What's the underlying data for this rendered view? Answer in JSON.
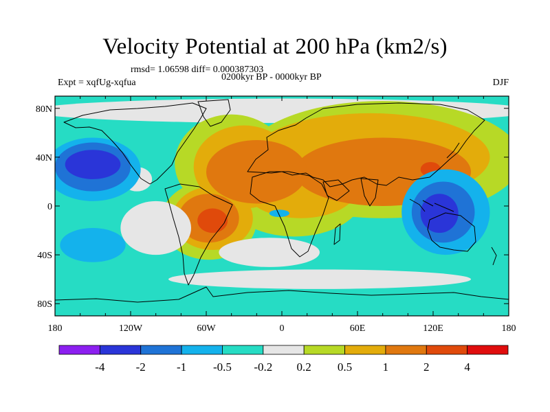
{
  "chart_data": {
    "type": "heatmap",
    "title": "Velocity Potential at 200 hPa (km2/s)",
    "stats_text": "rmsd= 1.06598 diff= 0.000387303",
    "rmsd": 1.06598,
    "diff": 0.000387303,
    "period": "0200kyr BP - 0000kyr BP",
    "experiment": "Expt = xqfUg-xqfua",
    "season": "DJF",
    "x_axis": {
      "range": [
        -180,
        180
      ],
      "ticks": [
        {
          "value": -180,
          "label": "180"
        },
        {
          "value": -120,
          "label": "120W"
        },
        {
          "value": -60,
          "label": "60W"
        },
        {
          "value": 0,
          "label": "0"
        },
        {
          "value": 60,
          "label": "60E"
        },
        {
          "value": 120,
          "label": "120E"
        },
        {
          "value": 180,
          "label": "180"
        }
      ]
    },
    "y_axis": {
      "range": [
        -90,
        90
      ],
      "ticks": [
        {
          "value": 80,
          "label": "80N"
        },
        {
          "value": 40,
          "label": "40N"
        },
        {
          "value": 0,
          "label": "0"
        },
        {
          "value": -40,
          "label": "40S"
        },
        {
          "value": -80,
          "label": "80S"
        }
      ]
    },
    "colorbar": {
      "levels": [
        "-4",
        "-2",
        "-1",
        "-0.5",
        "-0.2",
        "0.2",
        "0.5",
        "1",
        "2",
        "4"
      ],
      "colors": [
        "#8c1ff0",
        "#2a35d8",
        "#1f73d6",
        "#14b2ec",
        "#26dcc4",
        "#e6e6e6",
        "#b7d926",
        "#e3ac0b",
        "#e0780f",
        "#e04a0b",
        "#e00d0d"
      ]
    },
    "regions": [
      {
        "name": "north-pacific-low",
        "lon": -150,
        "lat": 35,
        "value": -2.5
      },
      {
        "name": "east-pacific-low",
        "lon": -120,
        "lat": 10,
        "value": -0.4
      },
      {
        "name": "south-pacific-low",
        "lon": -140,
        "lat": -30,
        "value": -1.0
      },
      {
        "name": "south-america-high",
        "lon": -58,
        "lat": -10,
        "value": 2.6
      },
      {
        "name": "north-atlantic-high",
        "lon": -40,
        "lat": 50,
        "value": 1.2
      },
      {
        "name": "africa-high",
        "lon": 20,
        "lat": 10,
        "value": 1.2
      },
      {
        "name": "asia-high",
        "lon": 80,
        "lat": 45,
        "value": 1.5
      },
      {
        "name": "east-asia-high",
        "lon": 120,
        "lat": 30,
        "value": 2.5
      },
      {
        "name": "maritime-continent-low",
        "lon": 125,
        "lat": -5,
        "value": -2.5
      },
      {
        "name": "equatorial-atlantic-low",
        "lon": 0,
        "lat": -5,
        "value": -0.4
      },
      {
        "name": "southern-ocean",
        "lon": 0,
        "lat": -60,
        "value": -0.3
      }
    ]
  }
}
